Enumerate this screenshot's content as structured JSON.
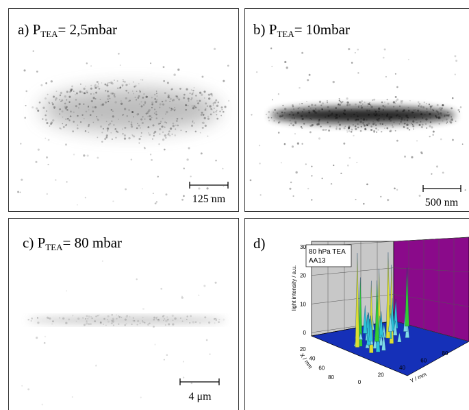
{
  "panels": [
    {
      "prefix": "a) P",
      "sub": "TEA",
      "suffix": "= 2,5mbar",
      "scale": "125 nm"
    },
    {
      "prefix": "b) P",
      "sub": "TEA",
      "suffix": "= 10mbar",
      "scale": "500 nm"
    },
    {
      "prefix": "c) P",
      "sub": "TEA",
      "suffix": "= 80 mbar",
      "scale": "4 μm"
    },
    {
      "prefix": "d)"
    }
  ],
  "plot": {
    "legend": [
      "80 hPa TEA",
      "AA13"
    ],
    "z_label": "light intensity / a.u.",
    "z_ticks": [
      0,
      10,
      20,
      30
    ],
    "x_label": "X / mm",
    "x_ticks": [
      20,
      40,
      60,
      80
    ],
    "y_label": "Y / mm",
    "y_ticks": [
      0,
      20,
      40,
      60,
      80
    ]
  }
}
